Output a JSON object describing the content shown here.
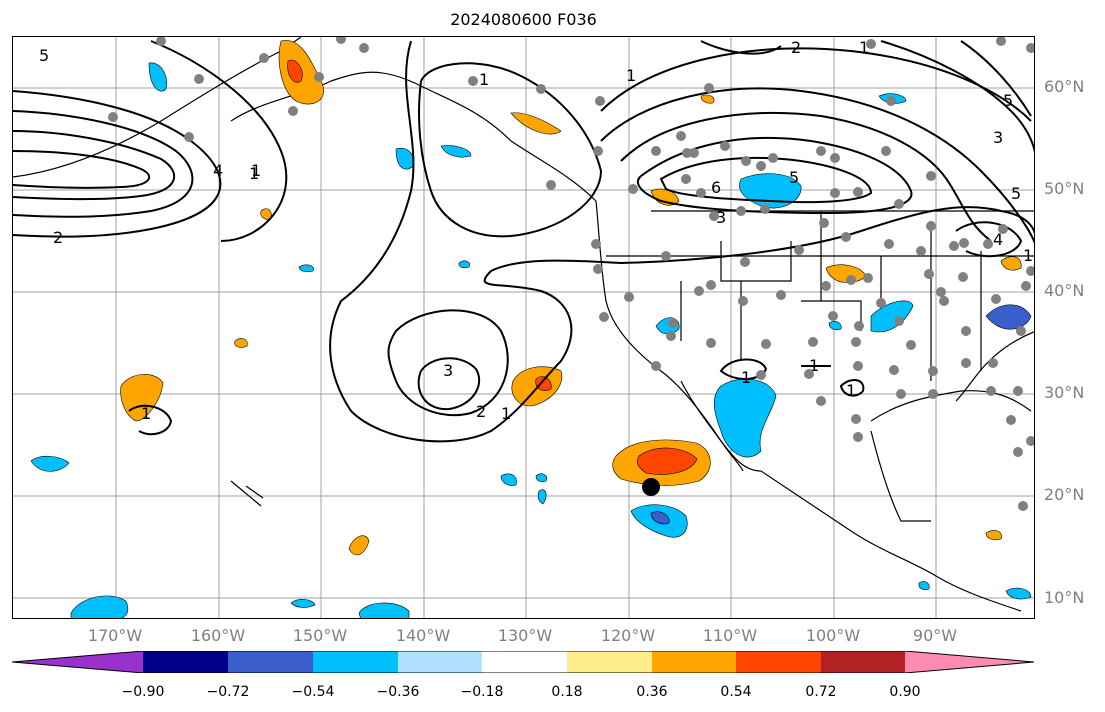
{
  "title": "2024080600 F036",
  "lat_labels": [
    "60°N",
    "50°N",
    "40°N",
    "30°N",
    "20°N",
    "10°N"
  ],
  "lon_labels": [
    "170°W",
    "160°W",
    "150°W",
    "140°W",
    "130°W",
    "120°W",
    "110°W",
    "100°W",
    "90°W"
  ],
  "colorbar": {
    "ticks": [
      "−0.90",
      "−0.72",
      "−0.54",
      "−0.36",
      "−0.18",
      "0.18",
      "0.36",
      "0.54",
      "0.72",
      "0.90"
    ],
    "colors": [
      "#9932cc",
      "#00008b",
      "#3a5fcd",
      "#00bfff",
      "#b0e2ff",
      "#ffffff",
      "#ffec8b",
      "#ffa500",
      "#ff4500",
      "#b22222",
      "#ff8cb0"
    ]
  },
  "contour_labels": [
    "5",
    "4",
    "1",
    "2",
    "1",
    "1",
    "5",
    "5",
    "6",
    "3",
    "5",
    "3",
    "4",
    "1",
    "2",
    "3",
    "2",
    "1",
    "1",
    "1",
    "1",
    "1",
    "1",
    "1"
  ],
  "colors": {
    "contour": "#000000",
    "station": "#808080",
    "grid": "#a0a0a0",
    "marker": "#000000"
  }
}
